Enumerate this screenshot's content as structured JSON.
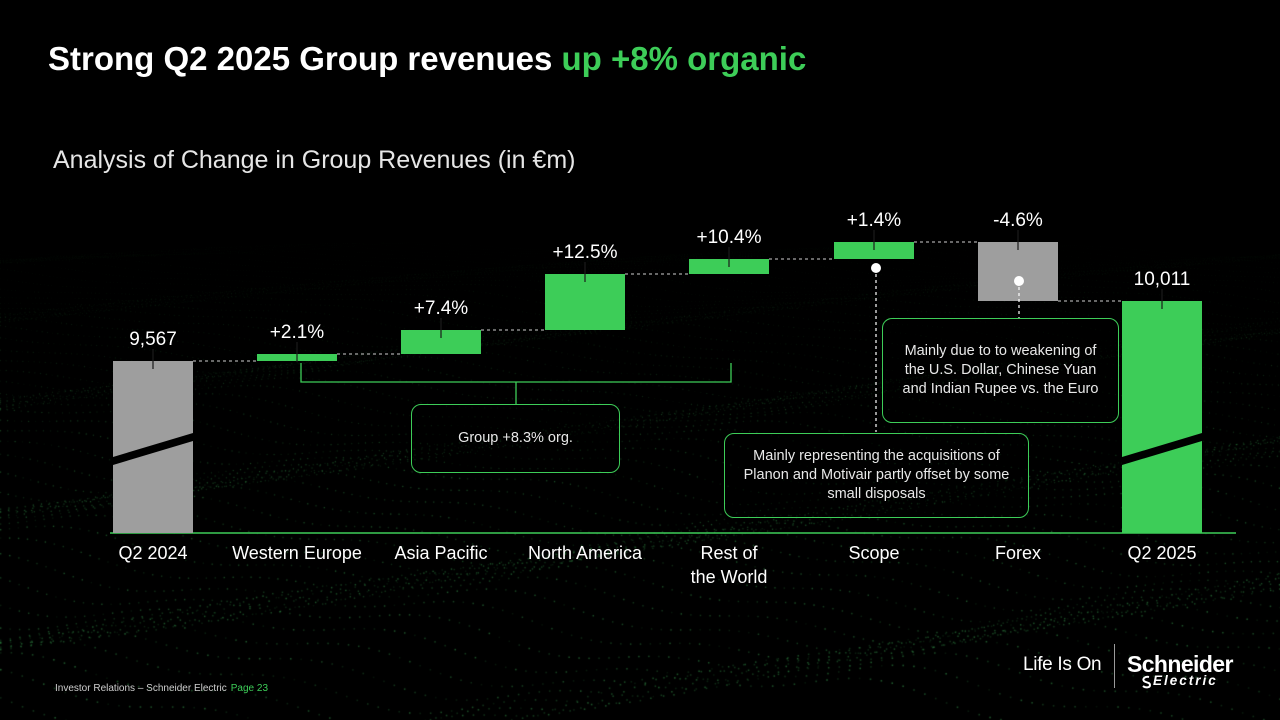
{
  "slide": {
    "title_main": "Strong Q2 2025 Group revenues ",
    "title_highlight": "up +8% organic",
    "subtitle": "Analysis of Change in Group Revenues (in €m)"
  },
  "colors": {
    "accent": "#3dcd58",
    "start_end_gray": "#9e9e9e",
    "forex_gray": "#9e9e9e",
    "increase_green": "#3dcd58"
  },
  "chart_data": {
    "type": "waterfall",
    "categories": [
      "Q2 2024",
      "Western Europe",
      "Asia Pacific",
      "North America",
      "Rest of the World",
      "Scope",
      "Forex",
      "Q2 2025"
    ],
    "category_lines": [
      [
        "Q2 2024"
      ],
      [
        "Western Europe"
      ],
      [
        "Asia Pacific"
      ],
      [
        "North America"
      ],
      [
        "Rest of",
        "the World"
      ],
      [
        "Scope"
      ],
      [
        "Forex"
      ],
      [
        "Q2 2025"
      ]
    ],
    "bars": [
      {
        "category": "Q2 2024",
        "kind": "total",
        "value": 9567,
        "label": "9,567",
        "color": "gray"
      },
      {
        "category": "Western Europe",
        "kind": "delta",
        "label": "+2.1%",
        "color": "green"
      },
      {
        "category": "Asia Pacific",
        "kind": "delta",
        "label": "+7.4%",
        "color": "green"
      },
      {
        "category": "North America",
        "kind": "delta",
        "label": "+12.5%",
        "color": "green"
      },
      {
        "category": "Rest of the World",
        "kind": "delta",
        "label": "+10.4%",
        "color": "green"
      },
      {
        "category": "Scope",
        "kind": "delta",
        "label": "+1.4%",
        "color": "green"
      },
      {
        "category": "Forex",
        "kind": "delta",
        "label": "-4.6%",
        "color": "gray"
      },
      {
        "category": "Q2 2025",
        "kind": "total",
        "value": 10011,
        "label": "10,011",
        "color": "green"
      }
    ],
    "axis_broken": true,
    "annotations": {
      "group_organic": "Group +8.3% org.",
      "scope_note": "Mainly representing the acquisitions of Planon and Motivair partly offset by some small disposals",
      "forex_note": "Mainly due to to weakening of the U.S. Dollar, Chinese Yuan and Indian Rupee vs. the Euro"
    }
  },
  "footer": {
    "source": "Investor Relations – Schneider Electric",
    "page": "Page 23",
    "tagline": "Life Is On",
    "brand": "Schneider",
    "brand_sub": "Electric"
  }
}
